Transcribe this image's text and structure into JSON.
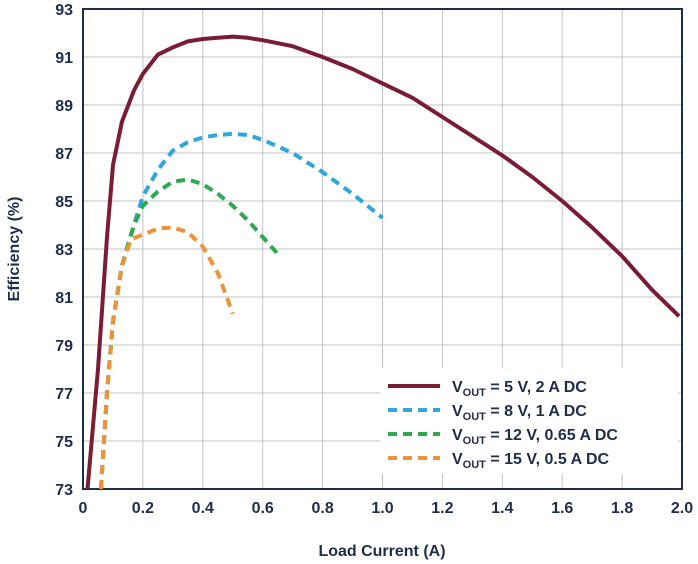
{
  "chart_data": {
    "type": "line",
    "xlabel": "Load Current (A)",
    "ylabel": "Efficiency (%)",
    "xlim": [
      0,
      2.0
    ],
    "ylim": [
      73,
      93
    ],
    "x_ticks": [
      "0",
      "0.2",
      "0.4",
      "0.6",
      "0.8",
      "1.0",
      "1.2",
      "1.4",
      "1.6",
      "1.8",
      "2.0"
    ],
    "y_ticks": [
      "73",
      "75",
      "77",
      "79",
      "81",
      "83",
      "85",
      "87",
      "89",
      "91",
      "93"
    ],
    "grid": true,
    "legend_position": "bottom-right",
    "series": [
      {
        "name": "V",
        "sub": "OUT",
        "suffix": " = 5 V, 2 A DC",
        "color": "#7a1c33",
        "dash": "solid",
        "points": [
          [
            0.015,
            73.0
          ],
          [
            0.05,
            78.0
          ],
          [
            0.08,
            83.5
          ],
          [
            0.1,
            86.5
          ],
          [
            0.13,
            88.3
          ],
          [
            0.17,
            89.6
          ],
          [
            0.2,
            90.3
          ],
          [
            0.25,
            91.1
          ],
          [
            0.3,
            91.4
          ],
          [
            0.35,
            91.65
          ],
          [
            0.4,
            91.75
          ],
          [
            0.45,
            91.8
          ],
          [
            0.5,
            91.85
          ],
          [
            0.55,
            91.8
          ],
          [
            0.6,
            91.7
          ],
          [
            0.7,
            91.45
          ],
          [
            0.8,
            91.0
          ],
          [
            0.9,
            90.5
          ],
          [
            1.0,
            89.9
          ],
          [
            1.1,
            89.3
          ],
          [
            1.2,
            88.5
          ],
          [
            1.3,
            87.7
          ],
          [
            1.4,
            86.9
          ],
          [
            1.5,
            86.0
          ],
          [
            1.6,
            85.0
          ],
          [
            1.7,
            83.9
          ],
          [
            1.8,
            82.7
          ],
          [
            1.9,
            81.3
          ],
          [
            1.99,
            80.2
          ]
        ]
      },
      {
        "name": "V",
        "sub": "OUT",
        "suffix": " = 8 V, 1 A DC",
        "color": "#2fa6dc",
        "dash": "dashed",
        "points": [
          [
            0.06,
            73.0
          ],
          [
            0.08,
            77.0
          ],
          [
            0.1,
            80.0
          ],
          [
            0.13,
            82.3
          ],
          [
            0.17,
            84.0
          ],
          [
            0.2,
            85.2
          ],
          [
            0.25,
            86.3
          ],
          [
            0.3,
            87.1
          ],
          [
            0.35,
            87.45
          ],
          [
            0.4,
            87.65
          ],
          [
            0.45,
            87.75
          ],
          [
            0.5,
            87.8
          ],
          [
            0.55,
            87.75
          ],
          [
            0.6,
            87.55
          ],
          [
            0.7,
            87.0
          ],
          [
            0.8,
            86.2
          ],
          [
            0.9,
            85.3
          ],
          [
            1.0,
            84.3
          ]
        ]
      },
      {
        "name": "V",
        "sub": "OUT",
        "suffix": " = 12 V, 0.65 A DC",
        "color": "#2fa84f",
        "dash": "dashed",
        "points": [
          [
            0.06,
            73.0
          ],
          [
            0.08,
            77.0
          ],
          [
            0.1,
            80.0
          ],
          [
            0.13,
            82.3
          ],
          [
            0.17,
            84.0
          ],
          [
            0.2,
            84.8
          ],
          [
            0.25,
            85.4
          ],
          [
            0.3,
            85.8
          ],
          [
            0.35,
            85.9
          ],
          [
            0.4,
            85.7
          ],
          [
            0.45,
            85.3
          ],
          [
            0.5,
            84.8
          ],
          [
            0.55,
            84.2
          ],
          [
            0.6,
            83.5
          ],
          [
            0.65,
            82.8
          ]
        ]
      },
      {
        "name": "V",
        "sub": "OUT",
        "suffix": " = 15 V, 0.5 A DC",
        "color": "#f0923a",
        "dash": "dashed",
        "points": [
          [
            0.06,
            73.0
          ],
          [
            0.08,
            77.0
          ],
          [
            0.1,
            80.0
          ],
          [
            0.13,
            82.3
          ],
          [
            0.16,
            83.4
          ],
          [
            0.2,
            83.6
          ],
          [
            0.25,
            83.85
          ],
          [
            0.3,
            83.9
          ],
          [
            0.35,
            83.7
          ],
          [
            0.4,
            83.1
          ],
          [
            0.45,
            82.0
          ],
          [
            0.5,
            80.3
          ]
        ]
      }
    ]
  }
}
